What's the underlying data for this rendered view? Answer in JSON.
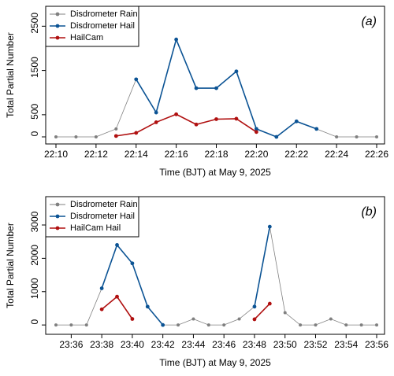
{
  "chart_data": [
    {
      "type": "line",
      "categories": [
        "22:10",
        null,
        "22:12",
        null,
        "22:14",
        null,
        "22:16",
        null,
        "22:18",
        null,
        "22:20",
        null,
        "22:22",
        null,
        "22:24",
        null,
        "22:26"
      ],
      "series": [
        {
          "name": "Disdrometer Rain",
          "color": "#808080",
          "values": [
            0,
            0,
            0,
            180,
            1300,
            550,
            2200,
            1100,
            1100,
            1480,
            180,
            0,
            350,
            180,
            0,
            0,
            0
          ]
        },
        {
          "name": "Disdrometer Hail",
          "color": "#0b5394",
          "values": [
            null,
            null,
            null,
            null,
            1300,
            550,
            2200,
            1100,
            1100,
            1480,
            180,
            0,
            350,
            180,
            null,
            null,
            null
          ]
        },
        {
          "name": "HailCam",
          "color": "#b01010",
          "values": [
            null,
            null,
            null,
            20,
            90,
            330,
            510,
            280,
            400,
            410,
            110,
            null,
            null,
            null,
            null,
            null,
            null
          ]
        }
      ],
      "ylim": [
        -160,
        2950
      ],
      "yticks": [
        0,
        500,
        1500,
        2500
      ],
      "xlabel": "Time (BJT) at May 9, 2025",
      "ylabel": "Total Partial Number",
      "annotation": "(a)",
      "legend": "top-left"
    },
    {
      "type": "line",
      "categories": [
        null,
        "23:36",
        null,
        "23:38",
        null,
        "23:40",
        null,
        "23:42",
        null,
        "23:44",
        null,
        "23:46",
        null,
        "23:48",
        null,
        "23:50",
        null,
        "23:52",
        null,
        "23:54",
        null,
        "23:56"
      ],
      "series": [
        {
          "name": "Disdrometer Rain",
          "color": "#808080",
          "values": [
            0,
            0,
            0,
            1100,
            2400,
            1850,
            550,
            0,
            0,
            180,
            0,
            0,
            180,
            550,
            2950,
            370,
            0,
            0,
            180,
            0,
            0,
            0
          ]
        },
        {
          "name": "Disdrometer Hail",
          "color": "#0b5394",
          "values": [
            null,
            null,
            null,
            1100,
            2400,
            1850,
            550,
            0,
            null,
            null,
            null,
            null,
            null,
            550,
            2950,
            null,
            null,
            null,
            null,
            null,
            null,
            null
          ]
        },
        {
          "name": "HailCam Hail",
          "color": "#b01010",
          "values": [
            null,
            null,
            null,
            470,
            850,
            180,
            null,
            null,
            null,
            null,
            null,
            null,
            null,
            170,
            640,
            null,
            null,
            null,
            null,
            null,
            null,
            null
          ]
        }
      ],
      "ylim": [
        -280,
        3850
      ],
      "yticks": [
        0,
        1000,
        2000,
        3000
      ],
      "xlabel": "Time (BJT) at May 9, 2025",
      "ylabel": "Total Partial Number",
      "annotation": "(b)",
      "legend": "top-left"
    }
  ]
}
